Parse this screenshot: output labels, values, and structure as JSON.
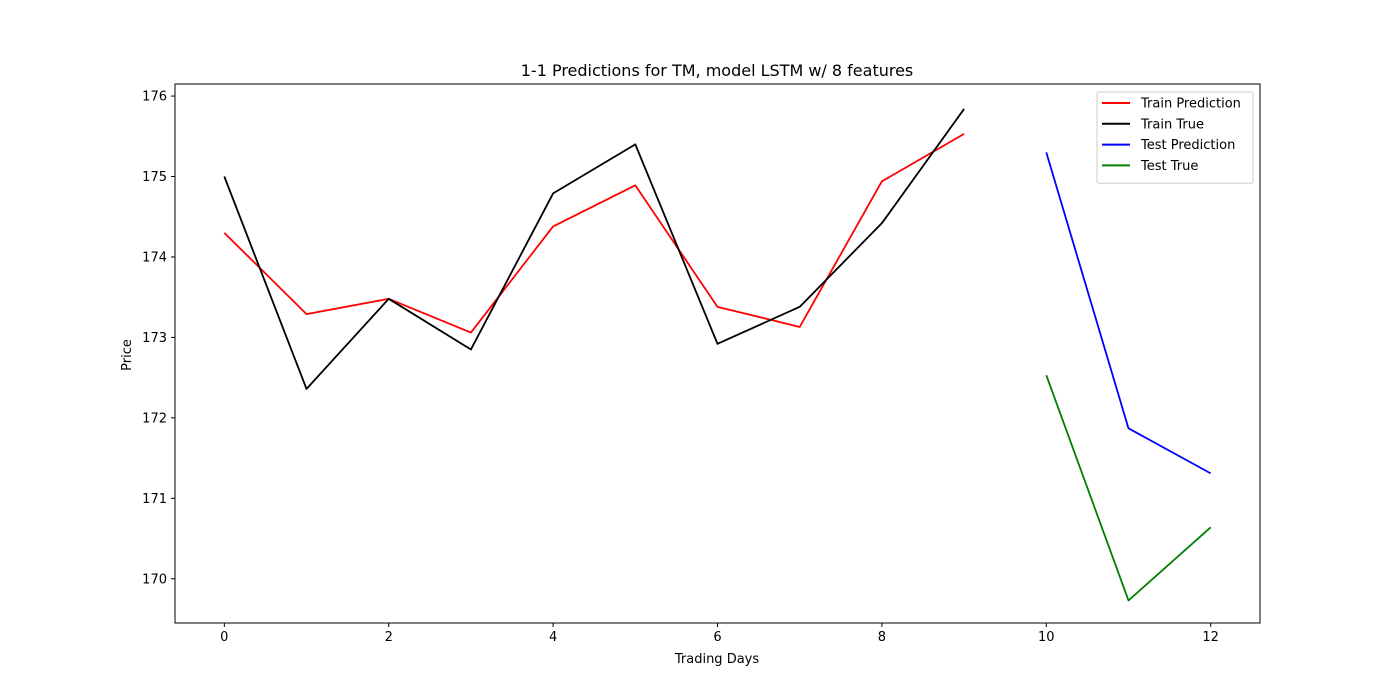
{
  "chart_data": {
    "type": "line",
    "title": "1-1 Predictions for TM, model LSTM w/ 8 features",
    "xlabel": "Trading Days",
    "ylabel": "Price",
    "xlim": [
      -0.6,
      12.6
    ],
    "ylim": [
      169.45,
      176.15
    ],
    "xticks": [
      0,
      2,
      4,
      6,
      8,
      10,
      12
    ],
    "yticks": [
      170,
      171,
      172,
      173,
      174,
      175,
      176
    ],
    "grid": false,
    "legend_position": "top-right",
    "series": [
      {
        "name": "Train Prediction",
        "color": "#ff0000",
        "x": [
          0,
          1,
          2,
          3,
          4,
          5,
          6,
          7,
          8,
          9
        ],
        "y": [
          174.3,
          173.29,
          173.48,
          173.06,
          174.38,
          174.89,
          173.38,
          173.13,
          174.94,
          175.53
        ]
      },
      {
        "name": "Train True",
        "color": "#000000",
        "x": [
          0,
          1,
          2,
          3,
          4,
          5,
          6,
          7,
          8,
          9
        ],
        "y": [
          175.0,
          172.36,
          173.48,
          172.85,
          174.79,
          175.4,
          172.92,
          173.38,
          174.42,
          175.84
        ]
      },
      {
        "name": "Test Prediction",
        "color": "#0000ff",
        "x": [
          10,
          11,
          12
        ],
        "y": [
          175.3,
          171.87,
          171.31
        ]
      },
      {
        "name": "Test True",
        "color": "#008000",
        "x": [
          10,
          11,
          12
        ],
        "y": [
          172.53,
          169.73,
          170.64
        ]
      }
    ]
  }
}
